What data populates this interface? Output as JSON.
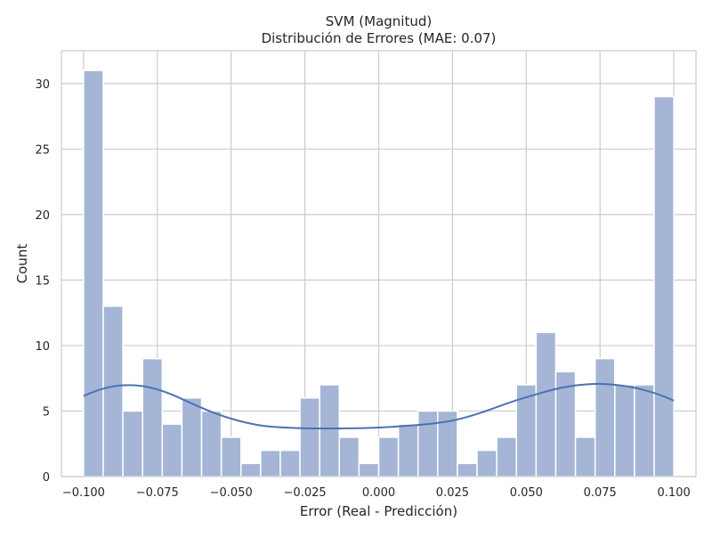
{
  "chart_data": {
    "type": "bar",
    "title": "SVM (Magnitud)",
    "subtitle": "Distribución de Errores (MAE: 0.07)",
    "xlabel": "Error (Real - Predicción)",
    "ylabel": "Count",
    "xlim": [
      -0.1075,
      0.1075
    ],
    "ylim": [
      0,
      32.5
    ],
    "xticks": [
      -0.1,
      -0.075,
      -0.05,
      -0.025,
      0.0,
      0.025,
      0.05,
      0.075,
      0.1
    ],
    "xtick_labels": [
      "−0.100",
      "−0.075",
      "−0.050",
      "−0.025",
      "0.000",
      "0.025",
      "0.050",
      "0.075",
      "0.100"
    ],
    "yticks": [
      0,
      5,
      10,
      15,
      20,
      25,
      30
    ],
    "ytick_labels": [
      "0",
      "5",
      "10",
      "15",
      "20",
      "25",
      "30"
    ],
    "grid": true,
    "bin_range": [
      -0.1,
      0.1
    ],
    "bin_counts": [
      31,
      13,
      5,
      9,
      4,
      6,
      5,
      3,
      1,
      2,
      2,
      6,
      7,
      3,
      1,
      3,
      4,
      5,
      5,
      1,
      2,
      3,
      7,
      11,
      8,
      3,
      9,
      7,
      7,
      29
    ],
    "kde": {
      "x": [
        -0.1,
        -0.095,
        -0.09,
        -0.085,
        -0.08,
        -0.075,
        -0.07,
        -0.065,
        -0.06,
        -0.055,
        -0.05,
        -0.045,
        -0.04,
        -0.035,
        -0.03,
        -0.025,
        -0.02,
        -0.015,
        -0.01,
        -0.005,
        0.0,
        0.005,
        0.01,
        0.015,
        0.02,
        0.025,
        0.03,
        0.035,
        0.04,
        0.045,
        0.05,
        0.055,
        0.06,
        0.065,
        0.07,
        0.075,
        0.08,
        0.085,
        0.09,
        0.095,
        0.1
      ],
      "y": [
        6.15,
        6.6,
        6.88,
        6.98,
        6.9,
        6.65,
        6.25,
        5.75,
        5.25,
        4.8,
        4.42,
        4.12,
        3.9,
        3.78,
        3.72,
        3.68,
        3.67,
        3.67,
        3.68,
        3.7,
        3.74,
        3.8,
        3.88,
        3.97,
        4.1,
        4.27,
        4.55,
        4.9,
        5.3,
        5.7,
        6.05,
        6.38,
        6.68,
        6.9,
        7.03,
        7.07,
        7.0,
        6.85,
        6.6,
        6.25,
        5.8
      ]
    },
    "colors": {
      "bar_fill": "#a4b5d6",
      "bar_stroke": "#ffffff",
      "kde_line": "#4c72b0",
      "grid": "#cccccc",
      "frame": "#cccccc"
    }
  }
}
